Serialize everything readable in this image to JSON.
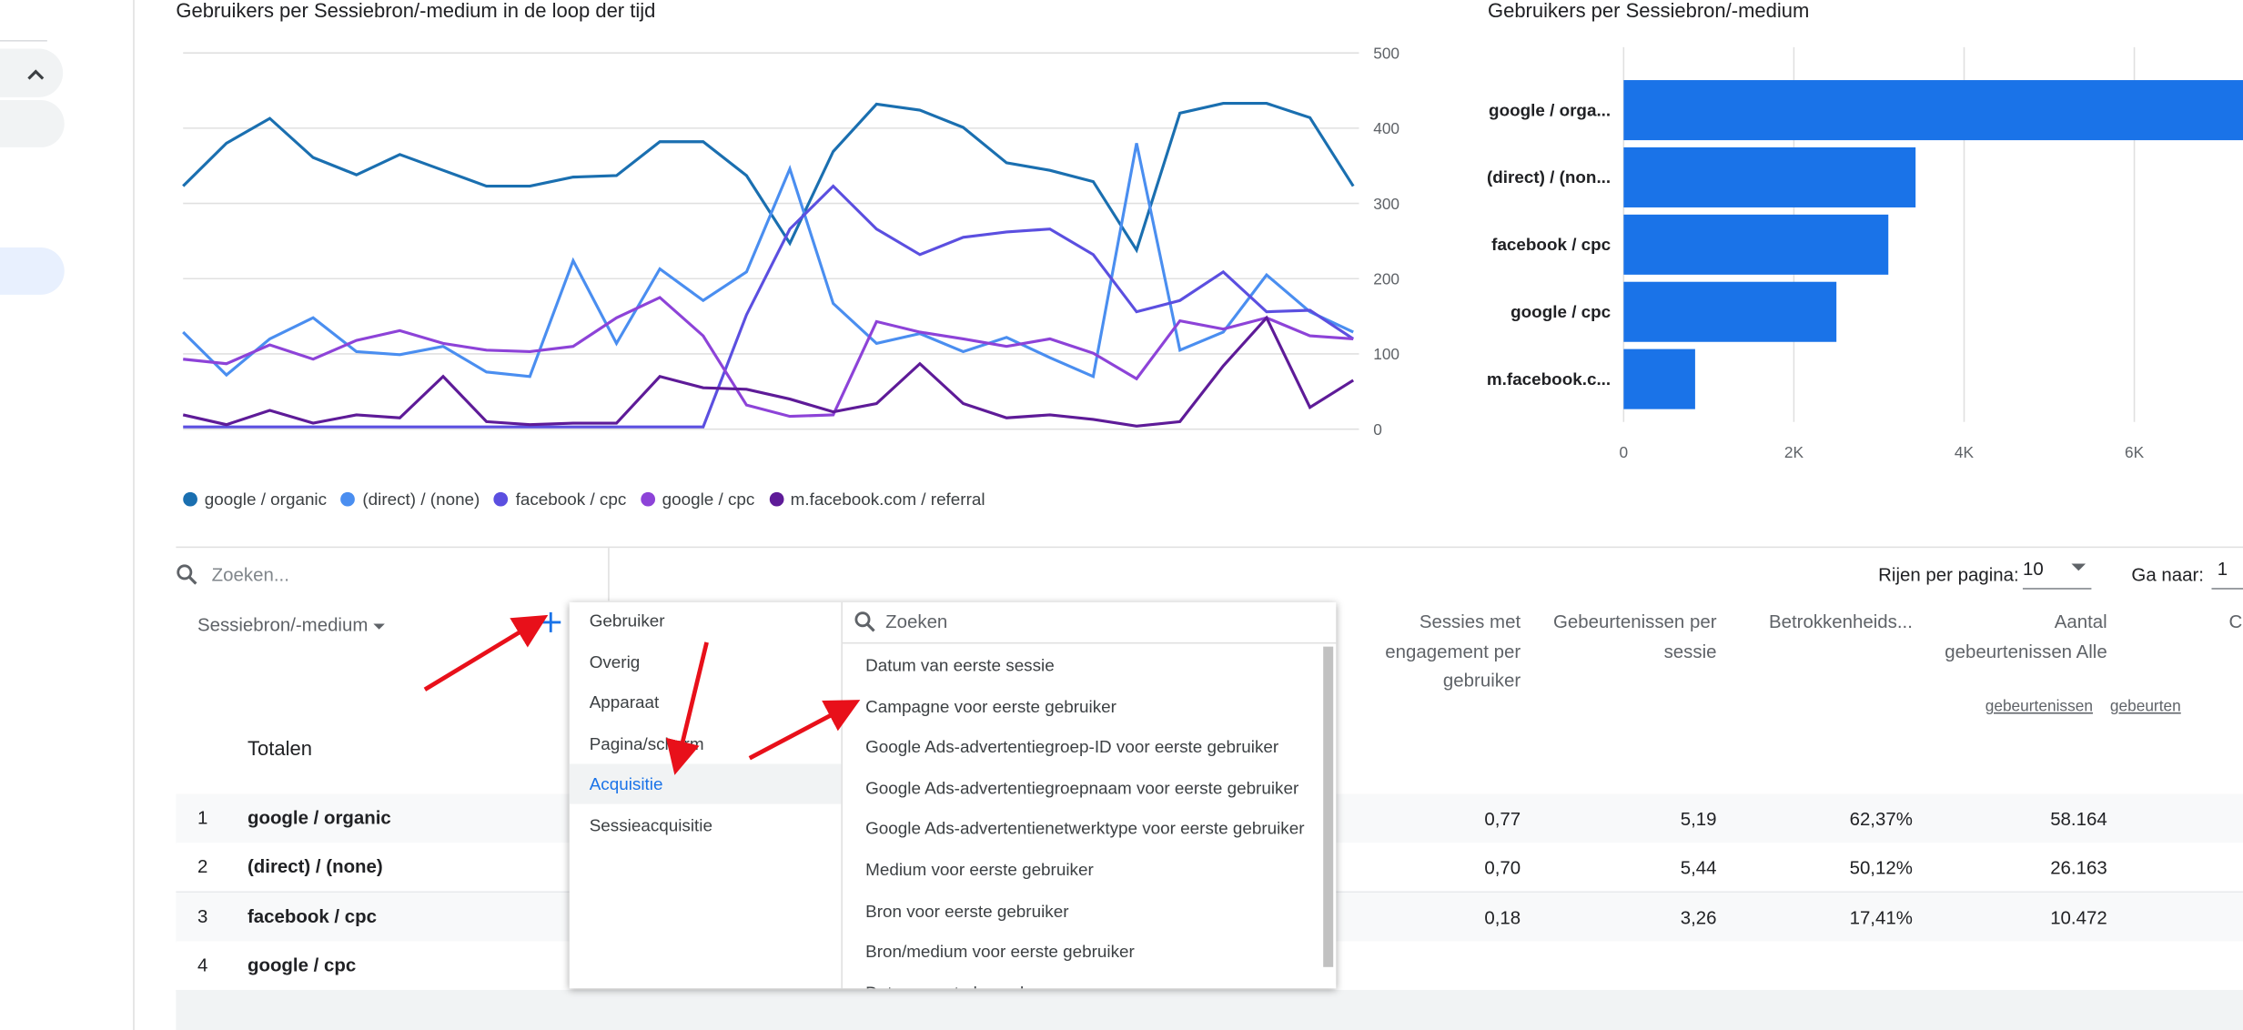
{
  "chart_data": [
    {
      "type": "line",
      "title": "Gebruikers per Sessiebron/-medium in de loop der tijd",
      "categories": [
        null,
        null,
        null,
        null,
        null,
        null,
        null,
        null,
        null,
        null,
        null,
        null,
        null,
        null,
        null,
        null,
        null,
        null,
        null,
        null,
        null,
        null,
        null,
        null,
        null,
        null,
        null,
        null
      ],
      "ylim": [
        0,
        500
      ],
      "yticks": [
        0,
        100,
        200,
        300,
        400,
        500
      ],
      "grid": true,
      "y_axis_side": "right",
      "legend": "bottom",
      "series": [
        {
          "name": "google / organic",
          "color": "#1a6fb0",
          "values": [
            323,
            380,
            413,
            361,
            338,
            365,
            344,
            323,
            323,
            335,
            337,
            382,
            382,
            337,
            247,
            369,
            432,
            424,
            401,
            354,
            344,
            329,
            238,
            420,
            433,
            433,
            414,
            323
          ]
        },
        {
          "name": "(direct) / (none)",
          "color": "#4a8ef0",
          "values": [
            129,
            72,
            120,
            148,
            103,
            99,
            110,
            76,
            70,
            224,
            114,
            213,
            171,
            209,
            346,
            167,
            114,
            127,
            103,
            122,
            95,
            70,
            380,
            105,
            129,
            205,
            156,
            129
          ]
        },
        {
          "name": "facebook / cpc",
          "color": "#5b4fe0",
          "values": [
            3,
            3,
            3,
            3,
            3,
            3,
            3,
            3,
            3,
            3,
            3,
            3,
            3,
            152,
            266,
            323,
            266,
            232,
            255,
            262,
            266,
            232,
            156,
            171,
            209,
            156,
            158,
            120
          ]
        },
        {
          "name": "google / cpc",
          "color": "#8d43d8",
          "values": [
            93,
            87,
            112,
            93,
            118,
            131,
            114,
            105,
            103,
            110,
            148,
            175,
            124,
            32,
            17,
            19,
            143,
            129,
            120,
            110,
            120,
            101,
            67,
            144,
            133,
            148,
            124,
            120
          ]
        },
        {
          "name": "m.facebook.com / referral",
          "color": "#5e1b98",
          "values": [
            19,
            6,
            25,
            8,
            19,
            15,
            70,
            10,
            6,
            8,
            8,
            70,
            55,
            53,
            40,
            23,
            34,
            87,
            34,
            15,
            19,
            13,
            4,
            10,
            84,
            148,
            29,
            65
          ]
        }
      ]
    },
    {
      "type": "hbar",
      "title": "Gebruikers per Sessiebron/-medium",
      "categories": [
        "google / orga...",
        "(direct) / (non...",
        "facebook / cpc",
        "google / cpc",
        "m.facebook.c..."
      ],
      "values": [
        7500,
        3430,
        3110,
        2500,
        840
      ],
      "color": "#1a73e8",
      "xlim": [
        0,
        8000
      ],
      "xticks": [
        0,
        {
          "value": 2000,
          "label": "2K"
        },
        {
          "value": 4000,
          "label": "4K"
        },
        {
          "value": 6000,
          "label": "6K"
        }
      ],
      "grid": true
    }
  ],
  "toolbar": {
    "search": "Zoeken...",
    "rows_label": "Rijen per pagina:",
    "rows_value": "10",
    "goto_label": "Ga naar:",
    "goto_value": "1"
  },
  "table": {
    "dimension": "Sessiebron/-medium",
    "totals": "Totalen",
    "headers": [
      "Sessies met engagement per gebruiker",
      "Gebeurtenissen per sessie",
      "Betrokkenheids...",
      "Aantal gebeurtenissen Alle",
      "Conver"
    ],
    "header_filters": [
      null,
      null,
      null,
      "gebeurtenissen",
      "gebeurten"
    ],
    "rows": [
      [
        "1",
        "google / organic",
        "0,77",
        "5,19",
        "62,37%",
        "58.164"
      ],
      [
        "2",
        "(direct) / (none)",
        "0,70",
        "5,44",
        "50,12%",
        "26.163"
      ],
      [
        "3",
        "facebook / cpc",
        "0,18",
        "3,26",
        "17,41%",
        "10.472"
      ],
      [
        "4",
        "google / cpc"
      ]
    ]
  },
  "menu": {
    "categories": [
      "Gebruiker",
      "Overig",
      "Apparaat",
      "Pagina/scherm",
      "Acquisitie",
      "Sessieacquisitie"
    ],
    "selected": "Acquisitie",
    "search": "Zoeken",
    "items": [
      "Datum van eerste sessie",
      "Campagne voor eerste gebruiker",
      "Google Ads-advertentiegroep-ID voor eerste gebruiker",
      "Google Ads-advertentiegroepnaam voor eerste gebruiker",
      "Google Ads-advertentienetwerktype voor eerste gebruiker",
      "Medium voor eerste gebruiker",
      "Bron voor eerste gebruiker",
      "Bron/medium voor eerste gebruiker",
      "Datum eerste bezoek"
    ]
  }
}
